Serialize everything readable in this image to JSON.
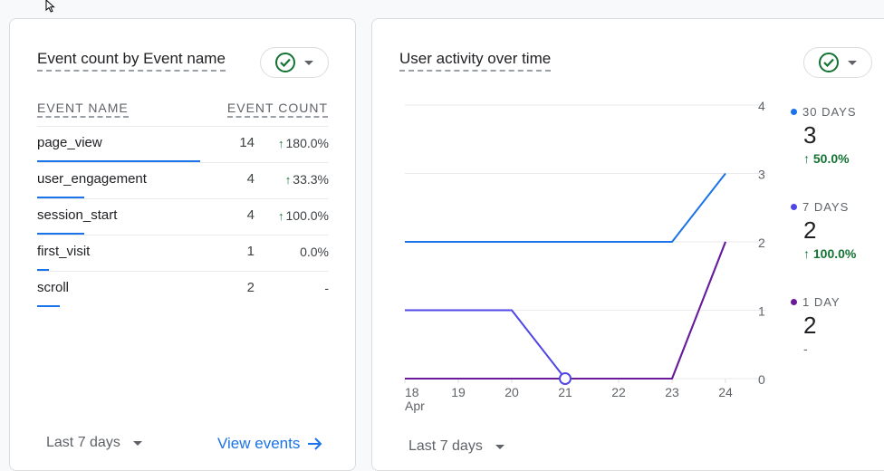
{
  "left_card": {
    "title": "Event count by Event name",
    "col_name": "EVENT NAME",
    "col_count": "EVENT COUNT",
    "rows": [
      {
        "name": "page_view",
        "count": "14",
        "change": "180.0%",
        "trend": "up",
        "bar_fraction": 1.0
      },
      {
        "name": "user_engagement",
        "count": "4",
        "change": "33.3%",
        "trend": "up",
        "bar_fraction": 0.29
      },
      {
        "name": "session_start",
        "count": "4",
        "change": "100.0%",
        "trend": "up",
        "bar_fraction": 0.29
      },
      {
        "name": "first_visit",
        "count": "1",
        "change": "0.0%",
        "trend": "none",
        "bar_fraction": 0.07
      },
      {
        "name": "scroll",
        "count": "2",
        "change": "-",
        "trend": "none",
        "bar_fraction": 0.14
      }
    ],
    "date_range": "Last 7 days",
    "link_label": "View events"
  },
  "right_card": {
    "title": "User activity over time",
    "date_range": "Last 7 days",
    "legend": [
      {
        "label": "30 DAYS",
        "value": "3",
        "change": "50.0%",
        "trend": "up",
        "color": "#1a73e8"
      },
      {
        "label": "7 DAYS",
        "value": "2",
        "change": "100.0%",
        "trend": "up",
        "color": "#4f46e5"
      },
      {
        "label": "1 DAY",
        "value": "2",
        "change": "-",
        "trend": "none",
        "color": "#6a1b9a"
      }
    ]
  },
  "chart_data": {
    "type": "line",
    "x": [
      "18",
      "19",
      "20",
      "21",
      "22",
      "23",
      "24"
    ],
    "x_sublabel_first": "Apr",
    "ylim": [
      0,
      4
    ],
    "y_ticks": [
      "0",
      "1",
      "2",
      "3",
      "4"
    ],
    "grid": true,
    "series": [
      {
        "name": "30 DAYS",
        "color": "#1a73e8",
        "values": [
          2,
          2,
          2,
          2,
          2,
          2,
          3
        ]
      },
      {
        "name": "7 DAYS",
        "color": "#4f46e5",
        "values": [
          1,
          1,
          1,
          0,
          0,
          0,
          2
        ]
      },
      {
        "name": "1 DAY",
        "color": "#6a1b9a",
        "values": [
          0,
          0,
          0,
          0,
          0,
          0,
          2
        ]
      }
    ],
    "marker": {
      "series": "7 DAYS",
      "x": "21",
      "y": 0
    }
  }
}
